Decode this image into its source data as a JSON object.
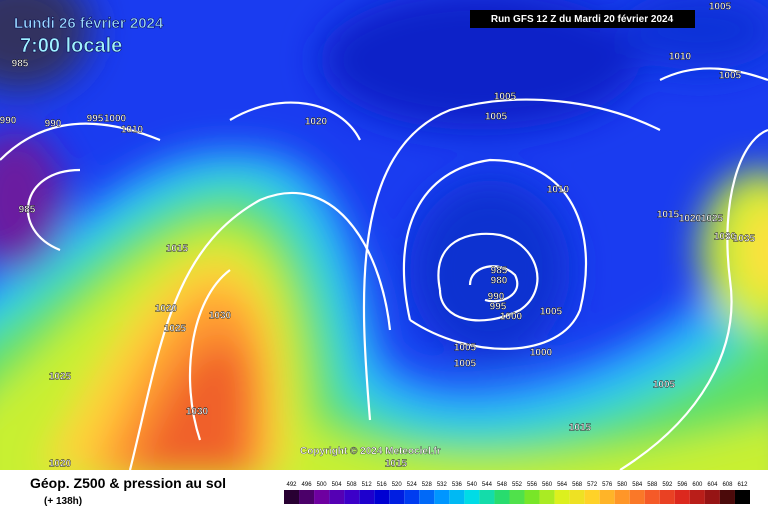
{
  "header": {
    "date": "Lundi 26 février 2024",
    "time": "7:00 locale",
    "run": "Run GFS 12 Z du Mardi 20 février 2024"
  },
  "isobar_labels": [
    "1005",
    "1010",
    "1005",
    "985",
    "990",
    "990",
    "995",
    "1000",
    "1010",
    "1020",
    "1005",
    "1005",
    "1010",
    "1015",
    "1020",
    "1025",
    "1030",
    "1035",
    "985",
    "1015",
    "985",
    "980",
    "990",
    "995",
    "1000",
    "1005",
    "1020",
    "1030",
    "1025",
    "1005",
    "1000",
    "1005",
    "1025",
    "1005",
    "1030",
    "1015",
    "1020",
    "1015"
  ],
  "copyright": "Copyright © 2024 Meteociel.fr",
  "footer": {
    "title": "Géop. Z500 & pression au sol",
    "offset": "(+ 138h)"
  },
  "scale": {
    "labels": [
      "492",
      "496",
      "500",
      "504",
      "508",
      "512",
      "516",
      "520",
      "524",
      "528",
      "532",
      "536",
      "540",
      "544",
      "548",
      "552",
      "556",
      "560",
      "564",
      "568",
      "572",
      "576",
      "580",
      "584",
      "588",
      "592",
      "596",
      "600",
      "604",
      "608",
      "612"
    ]
  }
}
